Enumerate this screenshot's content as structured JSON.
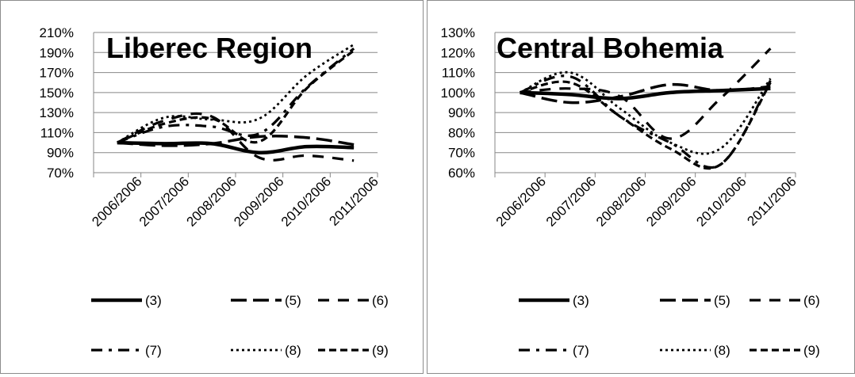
{
  "chart_data": [
    {
      "type": "line",
      "title": "Liberec Region",
      "xlabel": "",
      "ylabel": "",
      "categories": [
        "2006/2006",
        "2007/2006",
        "2008/2006",
        "2009/2006",
        "2010/2006",
        "2011/2006"
      ],
      "ylim": [
        70,
        210
      ],
      "y_ticks": [
        70,
        90,
        110,
        130,
        150,
        170,
        190,
        210
      ],
      "y_tick_labels": [
        "70%",
        "90%",
        "110%",
        "130%",
        "150%",
        "170%",
        "190%",
        "210%"
      ],
      "grid": true,
      "legend_placement": "bottom",
      "series": [
        {
          "name": "(3)",
          "dash": "solid",
          "values": [
            100,
            99,
            99,
            90,
            96,
            95
          ]
        },
        {
          "name": "(5)",
          "dash": "longdash",
          "values": [
            100,
            97,
            99,
            106,
            105,
            98
          ]
        },
        {
          "name": "(6)",
          "dash": "dash",
          "values": [
            100,
            122,
            126,
            85,
            87,
            82
          ]
        },
        {
          "name": "(7)",
          "dash": "dashdot",
          "values": [
            100,
            116,
            116,
            109,
            155,
            194
          ]
        },
        {
          "name": "(8)",
          "dash": "dot",
          "values": [
            100,
            125,
            123,
            124,
            167,
            198
          ]
        },
        {
          "name": "(9)",
          "dash": "shortdash",
          "values": [
            100,
            119,
            124,
            101,
            154,
            192
          ]
        }
      ]
    },
    {
      "type": "line",
      "title": "Central Bohemia",
      "xlabel": "",
      "ylabel": "",
      "categories": [
        "2006/2006",
        "2007/2006",
        "2008/2006",
        "2009/2006",
        "2010/2006",
        "2011/2006"
      ],
      "ylim": [
        60,
        130
      ],
      "y_ticks": [
        60,
        70,
        80,
        90,
        100,
        110,
        120,
        130
      ],
      "y_tick_labels": [
        "60%",
        "70%",
        "80%",
        "90%",
        "100%",
        "110%",
        "120%",
        "130%"
      ],
      "grid": true,
      "legend_placement": "bottom",
      "series": [
        {
          "name": "(3)",
          "dash": "solid",
          "values": [
            100,
            99,
            97,
            100,
            101,
            102
          ]
        },
        {
          "name": "(5)",
          "dash": "longdash",
          "values": [
            100,
            95,
            98,
            104,
            101,
            103
          ]
        },
        {
          "name": "(6)",
          "dash": "dash",
          "values": [
            100,
            102,
            98,
            77,
            97,
            122
          ]
        },
        {
          "name": "(7)",
          "dash": "dashdot",
          "values": [
            100,
            108,
            88,
            75,
            64,
            106
          ]
        },
        {
          "name": "(8)",
          "dash": "dot",
          "values": [
            100,
            110,
            92,
            75,
            72,
            107
          ]
        },
        {
          "name": "(9)",
          "dash": "shortdash",
          "values": [
            100,
            105,
            88,
            72,
            64,
            105
          ]
        }
      ]
    }
  ]
}
